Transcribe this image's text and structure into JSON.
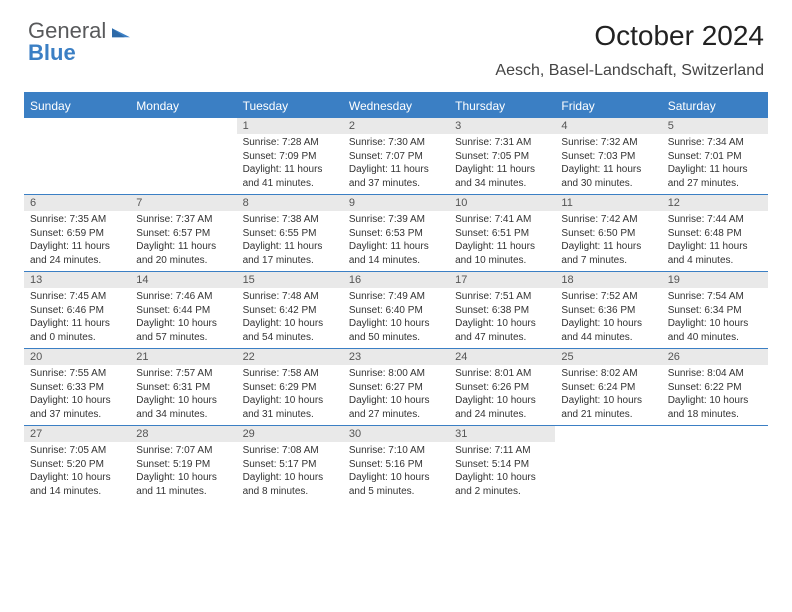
{
  "logo": {
    "word1": "General",
    "word2": "Blue"
  },
  "title": "October 2024",
  "location": "Aesch, Basel-Landschaft, Switzerland",
  "colors": {
    "accent": "#3b7fc4",
    "header_text": "#ffffff",
    "daynum_bg": "#e9e9e9",
    "body_text": "#333333",
    "logo_gray": "#58595b"
  },
  "typography": {
    "title_fontsize": 28,
    "location_fontsize": 16,
    "dow_fontsize": 12,
    "daynum_fontsize": 11,
    "cell_fontsize": 10
  },
  "dow": [
    "Sunday",
    "Monday",
    "Tuesday",
    "Wednesday",
    "Thursday",
    "Friday",
    "Saturday"
  ],
  "labels": {
    "sunrise": "Sunrise:",
    "sunset": "Sunset:",
    "daylight": "Daylight:"
  },
  "weeks": [
    [
      {
        "n": "",
        "empty": true
      },
      {
        "n": "",
        "empty": true
      },
      {
        "n": "1",
        "sr": "7:28 AM",
        "ss": "7:09 PM",
        "dl": "11 hours and 41 minutes."
      },
      {
        "n": "2",
        "sr": "7:30 AM",
        "ss": "7:07 PM",
        "dl": "11 hours and 37 minutes."
      },
      {
        "n": "3",
        "sr": "7:31 AM",
        "ss": "7:05 PM",
        "dl": "11 hours and 34 minutes."
      },
      {
        "n": "4",
        "sr": "7:32 AM",
        "ss": "7:03 PM",
        "dl": "11 hours and 30 minutes."
      },
      {
        "n": "5",
        "sr": "7:34 AM",
        "ss": "7:01 PM",
        "dl": "11 hours and 27 minutes."
      }
    ],
    [
      {
        "n": "6",
        "sr": "7:35 AM",
        "ss": "6:59 PM",
        "dl": "11 hours and 24 minutes."
      },
      {
        "n": "7",
        "sr": "7:37 AM",
        "ss": "6:57 PM",
        "dl": "11 hours and 20 minutes."
      },
      {
        "n": "8",
        "sr": "7:38 AM",
        "ss": "6:55 PM",
        "dl": "11 hours and 17 minutes."
      },
      {
        "n": "9",
        "sr": "7:39 AM",
        "ss": "6:53 PM",
        "dl": "11 hours and 14 minutes."
      },
      {
        "n": "10",
        "sr": "7:41 AM",
        "ss": "6:51 PM",
        "dl": "11 hours and 10 minutes."
      },
      {
        "n": "11",
        "sr": "7:42 AM",
        "ss": "6:50 PM",
        "dl": "11 hours and 7 minutes."
      },
      {
        "n": "12",
        "sr": "7:44 AM",
        "ss": "6:48 PM",
        "dl": "11 hours and 4 minutes."
      }
    ],
    [
      {
        "n": "13",
        "sr": "7:45 AM",
        "ss": "6:46 PM",
        "dl": "11 hours and 0 minutes."
      },
      {
        "n": "14",
        "sr": "7:46 AM",
        "ss": "6:44 PM",
        "dl": "10 hours and 57 minutes."
      },
      {
        "n": "15",
        "sr": "7:48 AM",
        "ss": "6:42 PM",
        "dl": "10 hours and 54 minutes."
      },
      {
        "n": "16",
        "sr": "7:49 AM",
        "ss": "6:40 PM",
        "dl": "10 hours and 50 minutes."
      },
      {
        "n": "17",
        "sr": "7:51 AM",
        "ss": "6:38 PM",
        "dl": "10 hours and 47 minutes."
      },
      {
        "n": "18",
        "sr": "7:52 AM",
        "ss": "6:36 PM",
        "dl": "10 hours and 44 minutes."
      },
      {
        "n": "19",
        "sr": "7:54 AM",
        "ss": "6:34 PM",
        "dl": "10 hours and 40 minutes."
      }
    ],
    [
      {
        "n": "20",
        "sr": "7:55 AM",
        "ss": "6:33 PM",
        "dl": "10 hours and 37 minutes."
      },
      {
        "n": "21",
        "sr": "7:57 AM",
        "ss": "6:31 PM",
        "dl": "10 hours and 34 minutes."
      },
      {
        "n": "22",
        "sr": "7:58 AM",
        "ss": "6:29 PM",
        "dl": "10 hours and 31 minutes."
      },
      {
        "n": "23",
        "sr": "8:00 AM",
        "ss": "6:27 PM",
        "dl": "10 hours and 27 minutes."
      },
      {
        "n": "24",
        "sr": "8:01 AM",
        "ss": "6:26 PM",
        "dl": "10 hours and 24 minutes."
      },
      {
        "n": "25",
        "sr": "8:02 AM",
        "ss": "6:24 PM",
        "dl": "10 hours and 21 minutes."
      },
      {
        "n": "26",
        "sr": "8:04 AM",
        "ss": "6:22 PM",
        "dl": "10 hours and 18 minutes."
      }
    ],
    [
      {
        "n": "27",
        "sr": "7:05 AM",
        "ss": "5:20 PM",
        "dl": "10 hours and 14 minutes."
      },
      {
        "n": "28",
        "sr": "7:07 AM",
        "ss": "5:19 PM",
        "dl": "10 hours and 11 minutes."
      },
      {
        "n": "29",
        "sr": "7:08 AM",
        "ss": "5:17 PM",
        "dl": "10 hours and 8 minutes."
      },
      {
        "n": "30",
        "sr": "7:10 AM",
        "ss": "5:16 PM",
        "dl": "10 hours and 5 minutes."
      },
      {
        "n": "31",
        "sr": "7:11 AM",
        "ss": "5:14 PM",
        "dl": "10 hours and 2 minutes."
      },
      {
        "n": "",
        "empty": true
      },
      {
        "n": "",
        "empty": true
      }
    ]
  ]
}
